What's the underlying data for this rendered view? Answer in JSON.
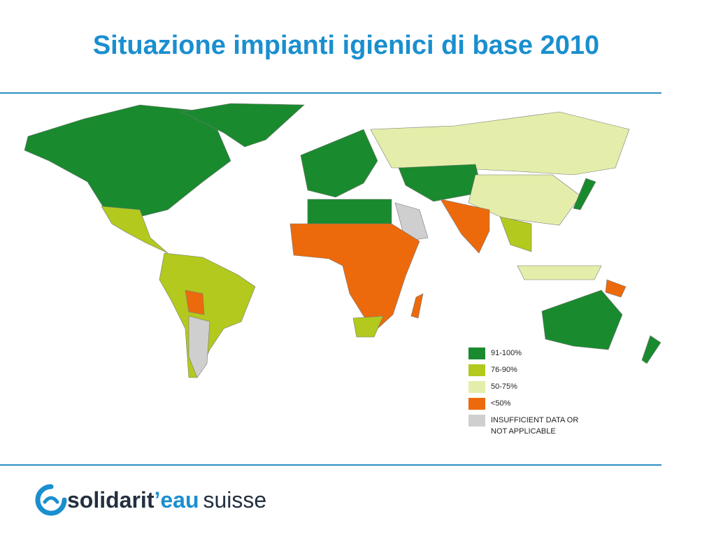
{
  "title": "Situazione impianti igienici di base 2010",
  "legend": [
    {
      "label": "91-100%",
      "color": "#1a8a2e"
    },
    {
      "label": "76-90%",
      "color": "#b3c91e"
    },
    {
      "label": "50-75%",
      "color": "#e4eeaa"
    },
    {
      "label": "<50%",
      "color": "#ec6a0c"
    },
    {
      "label": "INSUFFICIENT DATA OR NOT APPLICABLE",
      "color": "#cfcfcf"
    }
  ],
  "logo": {
    "part1": "solidarit",
    "part2": "’eau",
    "part3": "suisse"
  }
}
